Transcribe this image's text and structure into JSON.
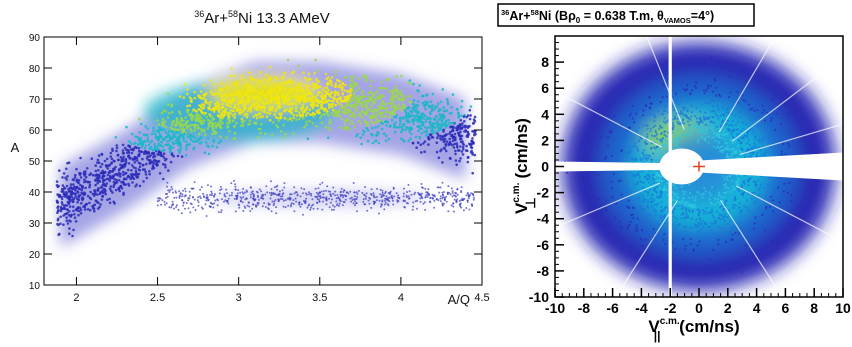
{
  "chart_data": [
    {
      "type": "heatmap",
      "title": {
        "pre": "36",
        "el1": "Ar+",
        "pre2": "58",
        "el2": "Ni 13.3 AMeV"
      },
      "xlabel": "A/Q",
      "ylabel": "A",
      "xlim": [
        1.8,
        4.5
      ],
      "ylim": [
        10,
        90
      ],
      "xticks": [
        2,
        2.5,
        3,
        3.5,
        4,
        4.5
      ],
      "yticks": [
        10,
        20,
        30,
        40,
        50,
        60,
        70,
        80,
        90
      ],
      "grid": false,
      "colors": {
        "low": "#1c1ca8",
        "mid": "#18b8c8",
        "high": "#f2e60c"
      },
      "features": {
        "main_band": {
          "x_range": [
            1.9,
            4.4
          ],
          "y_ridge": [
            [
              1.9,
              36
            ],
            [
              2.3,
              48
            ],
            [
              2.7,
              62
            ],
            [
              3.1,
              70
            ],
            [
              3.5,
              70
            ],
            [
              4.0,
              66
            ],
            [
              4.4,
              58
            ]
          ]
        },
        "hot_spot": {
          "x": 3.15,
          "y": 72
        },
        "tail_band": {
          "x_range": [
            2.6,
            4.4
          ],
          "y_center": 38
        }
      }
    },
    {
      "type": "heatmap",
      "title": {
        "pre": "36",
        "el1": "Ar+",
        "pre2": "58",
        "el2": "Ni (B",
        "rho": "ρ",
        "sub0": "0",
        "mid": " = 0.638 T.m, ",
        "theta": "θ",
        "sub_vamos": "VAMOS",
        "end": "=4°)"
      },
      "xlabel": {
        "v": "V",
        "sup": "c.m.",
        "sub": "||",
        "unit": " (cm/ns)"
      },
      "ylabel": {
        "v": "V",
        "sup": "c.m.",
        "sub": "⊥",
        "unit": " (cm/ns)"
      },
      "xlim": [
        -10,
        10
      ],
      "ylim": [
        -10,
        10
      ],
      "xticks": [
        -10,
        -8,
        -6,
        -4,
        -2,
        0,
        2,
        4,
        6,
        8,
        10
      ],
      "yticks": [
        -10,
        -8,
        -6,
        -4,
        -2,
        0,
        2,
        4,
        6,
        8
      ],
      "grid": false,
      "features": {
        "ring_center": [
          0,
          0
        ],
        "ring_radius_peak": 4,
        "inner_void_radius": 1.2,
        "shadow_x": -2,
        "beam_cut_angle_deg": 0
      }
    }
  ]
}
